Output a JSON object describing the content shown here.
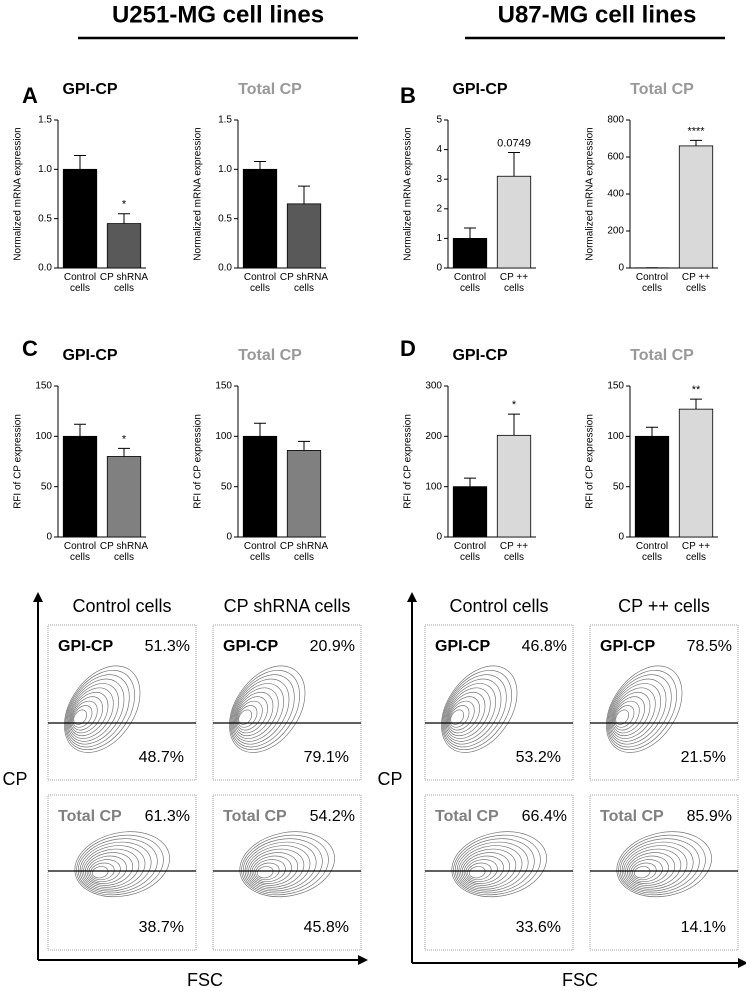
{
  "headers": [
    "U251-MG cell lines",
    "U87-MG cell lines"
  ],
  "chart_data": [
    {
      "type": "bar",
      "panel": "A",
      "title": "GPI-CP",
      "title_color": "#000000",
      "ylabel": "Normalized mRNA expression",
      "categories": [
        "Control cells",
        "CP shRNA cells"
      ],
      "values": [
        1.0,
        0.45
      ],
      "errors": [
        0.14,
        0.1
      ],
      "colors": [
        "#000000",
        "#595959"
      ],
      "annotations": [
        null,
        "*"
      ],
      "ylim": [
        0,
        1.5
      ],
      "yticks": [
        {
          "value": 0,
          "label": "0.0"
        },
        0.5,
        {
          "value": 1,
          "label": "1.0"
        },
        1.5
      ]
    },
    {
      "type": "bar",
      "title": "Total CP",
      "title_color": "#999999",
      "ylabel": "Normalized mRNA expression",
      "categories": [
        "Control cells",
        "CP shRNA cells"
      ],
      "values": [
        1.0,
        0.65
      ],
      "errors": [
        0.08,
        0.18
      ],
      "colors": [
        "#000000",
        "#595959"
      ],
      "annotations": [
        null,
        null
      ],
      "ylim": [
        0,
        1.5
      ],
      "yticks": [
        {
          "value": 0,
          "label": "0.0"
        },
        0.5,
        {
          "value": 1,
          "label": "1.0"
        },
        1.5
      ]
    },
    {
      "type": "bar",
      "panel": "B",
      "title": "GPI-CP",
      "title_color": "#000000",
      "ylabel": "Normalized mRNA expression",
      "categories": [
        "Control cells",
        "CP ++ cells"
      ],
      "values": [
        1.0,
        3.1
      ],
      "errors": [
        0.35,
        0.8
      ],
      "colors": [
        "#000000",
        "#d9d9d9"
      ],
      "annotations": [
        null,
        "0.0749"
      ],
      "ylim": [
        0,
        5
      ],
      "yticks": [
        0,
        1,
        2,
        3,
        4,
        5
      ]
    },
    {
      "type": "bar",
      "title": "Total CP",
      "title_color": "#999999",
      "ylabel": "Normalized mRNA expression",
      "categories": [
        "Control cells",
        "CP ++ cells"
      ],
      "values": [
        1,
        660
      ],
      "errors": [
        0,
        30
      ],
      "colors": [
        "#000000",
        "#d9d9d9"
      ],
      "annotations": [
        null,
        "****"
      ],
      "ylim": [
        0,
        800
      ],
      "yticks": [
        0,
        200,
        400,
        600,
        800
      ]
    },
    {
      "type": "bar",
      "panel": "C",
      "title": "GPI-CP",
      "title_color": "#000000",
      "ylabel": "RFI of CP expression",
      "categories": [
        "Control cells",
        "CP shRNA cells"
      ],
      "values": [
        100,
        80
      ],
      "errors": [
        12,
        8
      ],
      "colors": [
        "#000000",
        "#808080"
      ],
      "annotations": [
        null,
        "*"
      ],
      "ylim": [
        0,
        150
      ],
      "yticks": [
        0,
        50,
        100,
        150
      ]
    },
    {
      "type": "bar",
      "title": "Total CP",
      "title_color": "#999999",
      "ylabel": "RFI of CP expression",
      "categories": [
        "Control cells",
        "CP shRNA cells"
      ],
      "values": [
        100,
        86
      ],
      "errors": [
        13,
        9
      ],
      "colors": [
        "#000000",
        "#808080"
      ],
      "annotations": [
        null,
        null
      ],
      "ylim": [
        0,
        150
      ],
      "yticks": [
        0,
        50,
        100,
        150
      ]
    },
    {
      "type": "bar",
      "panel": "D",
      "title": "GPI-CP",
      "title_color": "#000000",
      "ylabel": "RFI of CP expression",
      "categories": [
        "Control cells",
        "CP ++ cells"
      ],
      "values": [
        100,
        202
      ],
      "errors": [
        17,
        42
      ],
      "colors": [
        "#000000",
        "#d9d9d9"
      ],
      "annotations": [
        null,
        "*"
      ],
      "ylim": [
        0,
        300
      ],
      "yticks": [
        0,
        100,
        200,
        300
      ]
    },
    {
      "type": "bar",
      "title": "Total CP",
      "title_color": "#999999",
      "ylabel": "RFI of CP expression",
      "categories": [
        "Control cells",
        "CP ++ cells"
      ],
      "values": [
        100,
        127
      ],
      "errors": [
        9,
        10
      ],
      "colors": [
        "#000000",
        "#d9d9d9"
      ],
      "annotations": [
        null,
        "**"
      ],
      "ylim": [
        0,
        150
      ],
      "yticks": [
        0,
        50,
        100,
        150
      ]
    }
  ],
  "flow": [
    {
      "columns": [
        "Control cells",
        "CP shRNA cells"
      ],
      "y_label": "CP",
      "x_label": "FSC",
      "plots": [
        [
          {
            "label": "GPI-CP",
            "top": "51.3%",
            "bottom": "48.7%"
          },
          {
            "label": "GPI-CP",
            "top": "20.9%",
            "bottom": "79.1%"
          }
        ],
        [
          {
            "label": "Total CP",
            "top": "61.3%",
            "bottom": "38.7%"
          },
          {
            "label": "Total CP",
            "top": "54.2%",
            "bottom": "45.8%"
          }
        ]
      ]
    },
    {
      "columns": [
        "Control cells",
        "CP ++ cells"
      ],
      "y_label": "CP",
      "x_label": "FSC",
      "plots": [
        [
          {
            "label": "GPI-CP",
            "top": "46.8%",
            "bottom": "53.2%"
          },
          {
            "label": "GPI-CP",
            "top": "78.5%",
            "bottom": "21.5%"
          }
        ],
        [
          {
            "label": "Total CP",
            "top": "66.4%",
            "bottom": "33.6%"
          },
          {
            "label": "Total CP",
            "top": "85.9%",
            "bottom": "14.1%"
          }
        ]
      ]
    }
  ]
}
